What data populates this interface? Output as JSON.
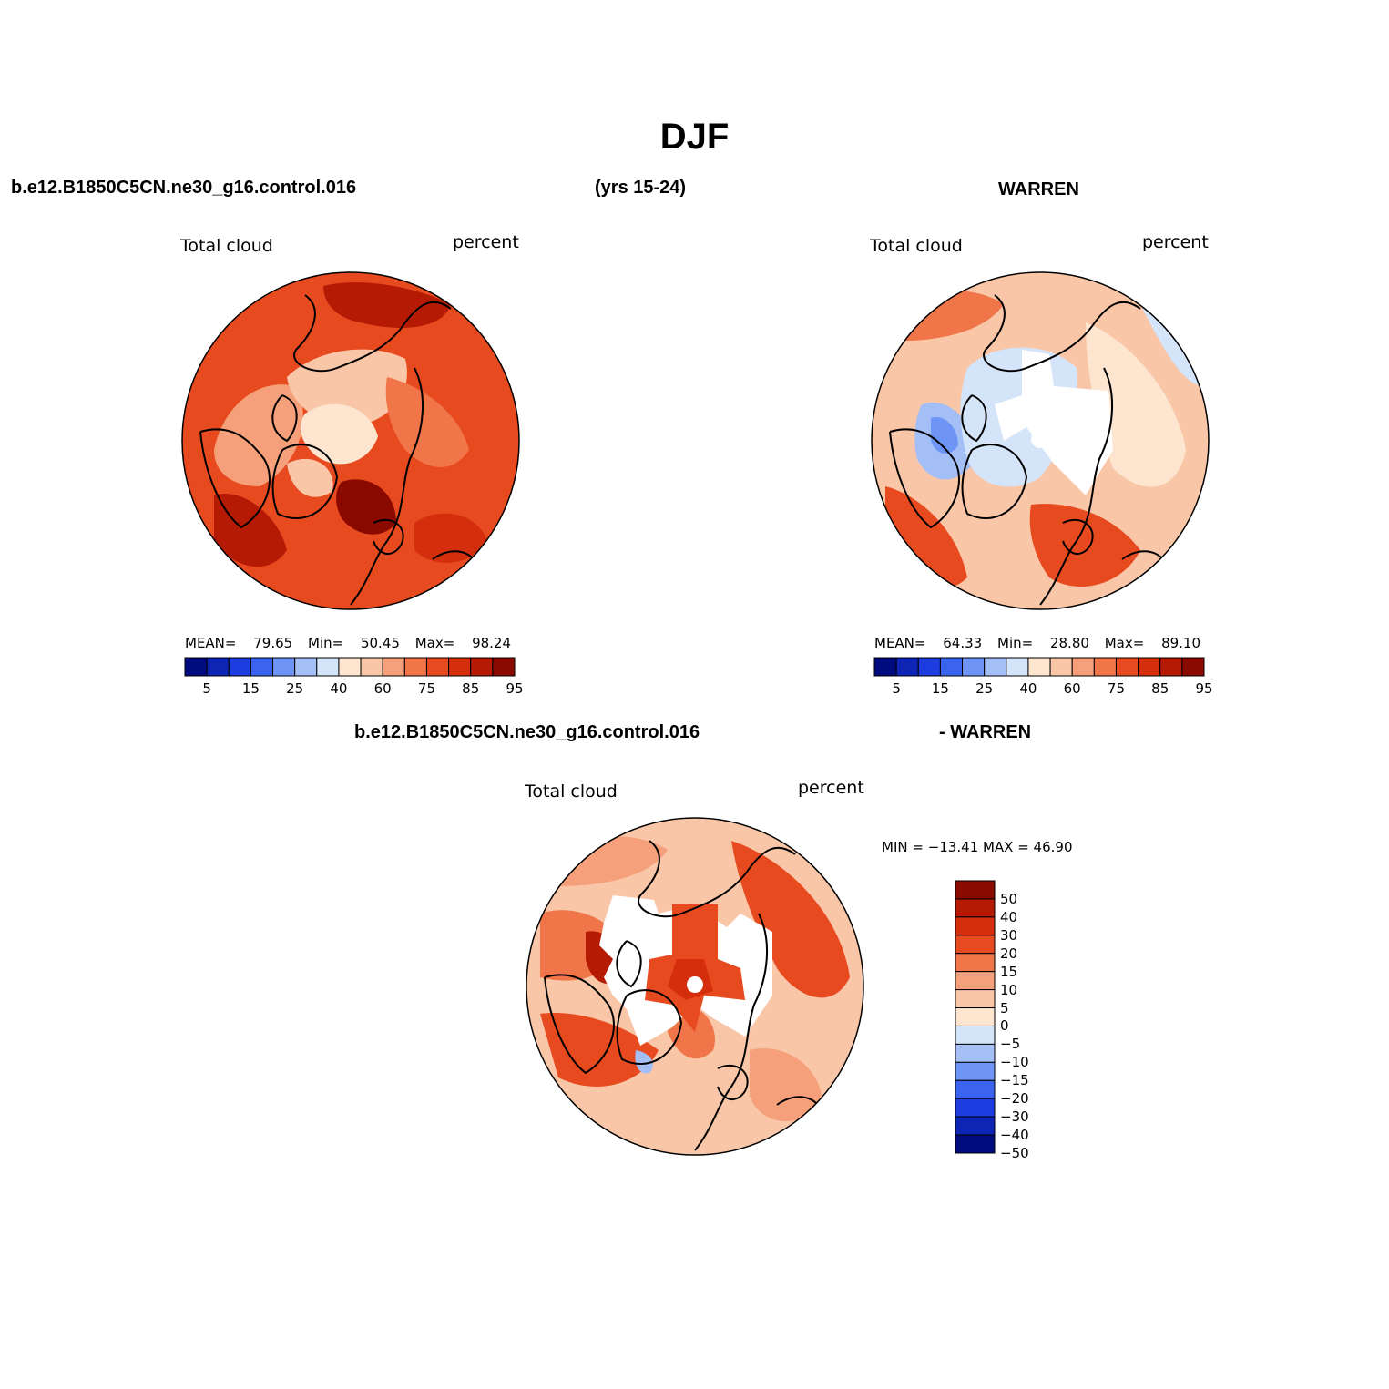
{
  "figure": {
    "title": "DJF",
    "left_header": "b.e12.B1850C5CN.ne30_g16.control.016",
    "center_header": "(yrs 15-24)",
    "right_header": "WARREN",
    "bottom_header_left": "b.e12.B1850C5CN.ne30_g16.control.016",
    "bottom_header_right": "- WARREN"
  },
  "panels": {
    "model": {
      "variable": "Total cloud",
      "units": "percent",
      "mean_label": "MEAN=",
      "mean": "79.65",
      "min_label": "Min=",
      "min": "50.45",
      "max_label": "Max=",
      "max": "98.24"
    },
    "obs": {
      "variable": "Total cloud",
      "units": "percent",
      "mean_label": "MEAN=",
      "mean": "64.33",
      "min_label": "Min=",
      "min": "28.80",
      "max_label": "Max=",
      "max": "89.10"
    },
    "diff": {
      "variable": "Total cloud",
      "units": "percent",
      "minmax_text": "MIN = −13.41  MAX =   46.90"
    }
  },
  "colorbars": {
    "abs": {
      "colors": [
        "#000c7e",
        "#0d24b4",
        "#1e3de0",
        "#3a64f0",
        "#6e95f5",
        "#a4bff6",
        "#d4e4f9",
        "#fde5d0",
        "#f9c6a8",
        "#f5a07a",
        "#f07548",
        "#e84a1f",
        "#d42e0c",
        "#b51a05",
        "#8a0a00"
      ],
      "tick_labels": [
        "5",
        "15",
        "25",
        "40",
        "60",
        "75",
        "85",
        "95"
      ]
    },
    "diff": {
      "colors": [
        "#8a0a00",
        "#b51a05",
        "#d42e0c",
        "#e84a1f",
        "#f07548",
        "#f5a07a",
        "#f9c6a8",
        "#fde5d0",
        "#d4e4f9",
        "#a4bff6",
        "#6e95f5",
        "#3a64f0",
        "#1e3de0",
        "#0d24b4",
        "#000c7e"
      ],
      "tick_labels": [
        "50",
        "40",
        "30",
        "20",
        "15",
        "10",
        "5",
        "0",
        "−5",
        "−10",
        "−15",
        "−20",
        "−30",
        "−40",
        "−50"
      ]
    }
  },
  "map_colors": {
    "deep_red": "#8a0a00",
    "dark_red": "#b51a05",
    "red": "#d42e0c",
    "orange_red": "#e84a1f",
    "orange": "#f07548",
    "salmon": "#f5a07a",
    "light_salmon": "#f9c6a8",
    "cream": "#fde5d0",
    "pale_blue": "#d4e4f9",
    "light_blue": "#a4bff6",
    "blue": "#6e95f5"
  }
}
